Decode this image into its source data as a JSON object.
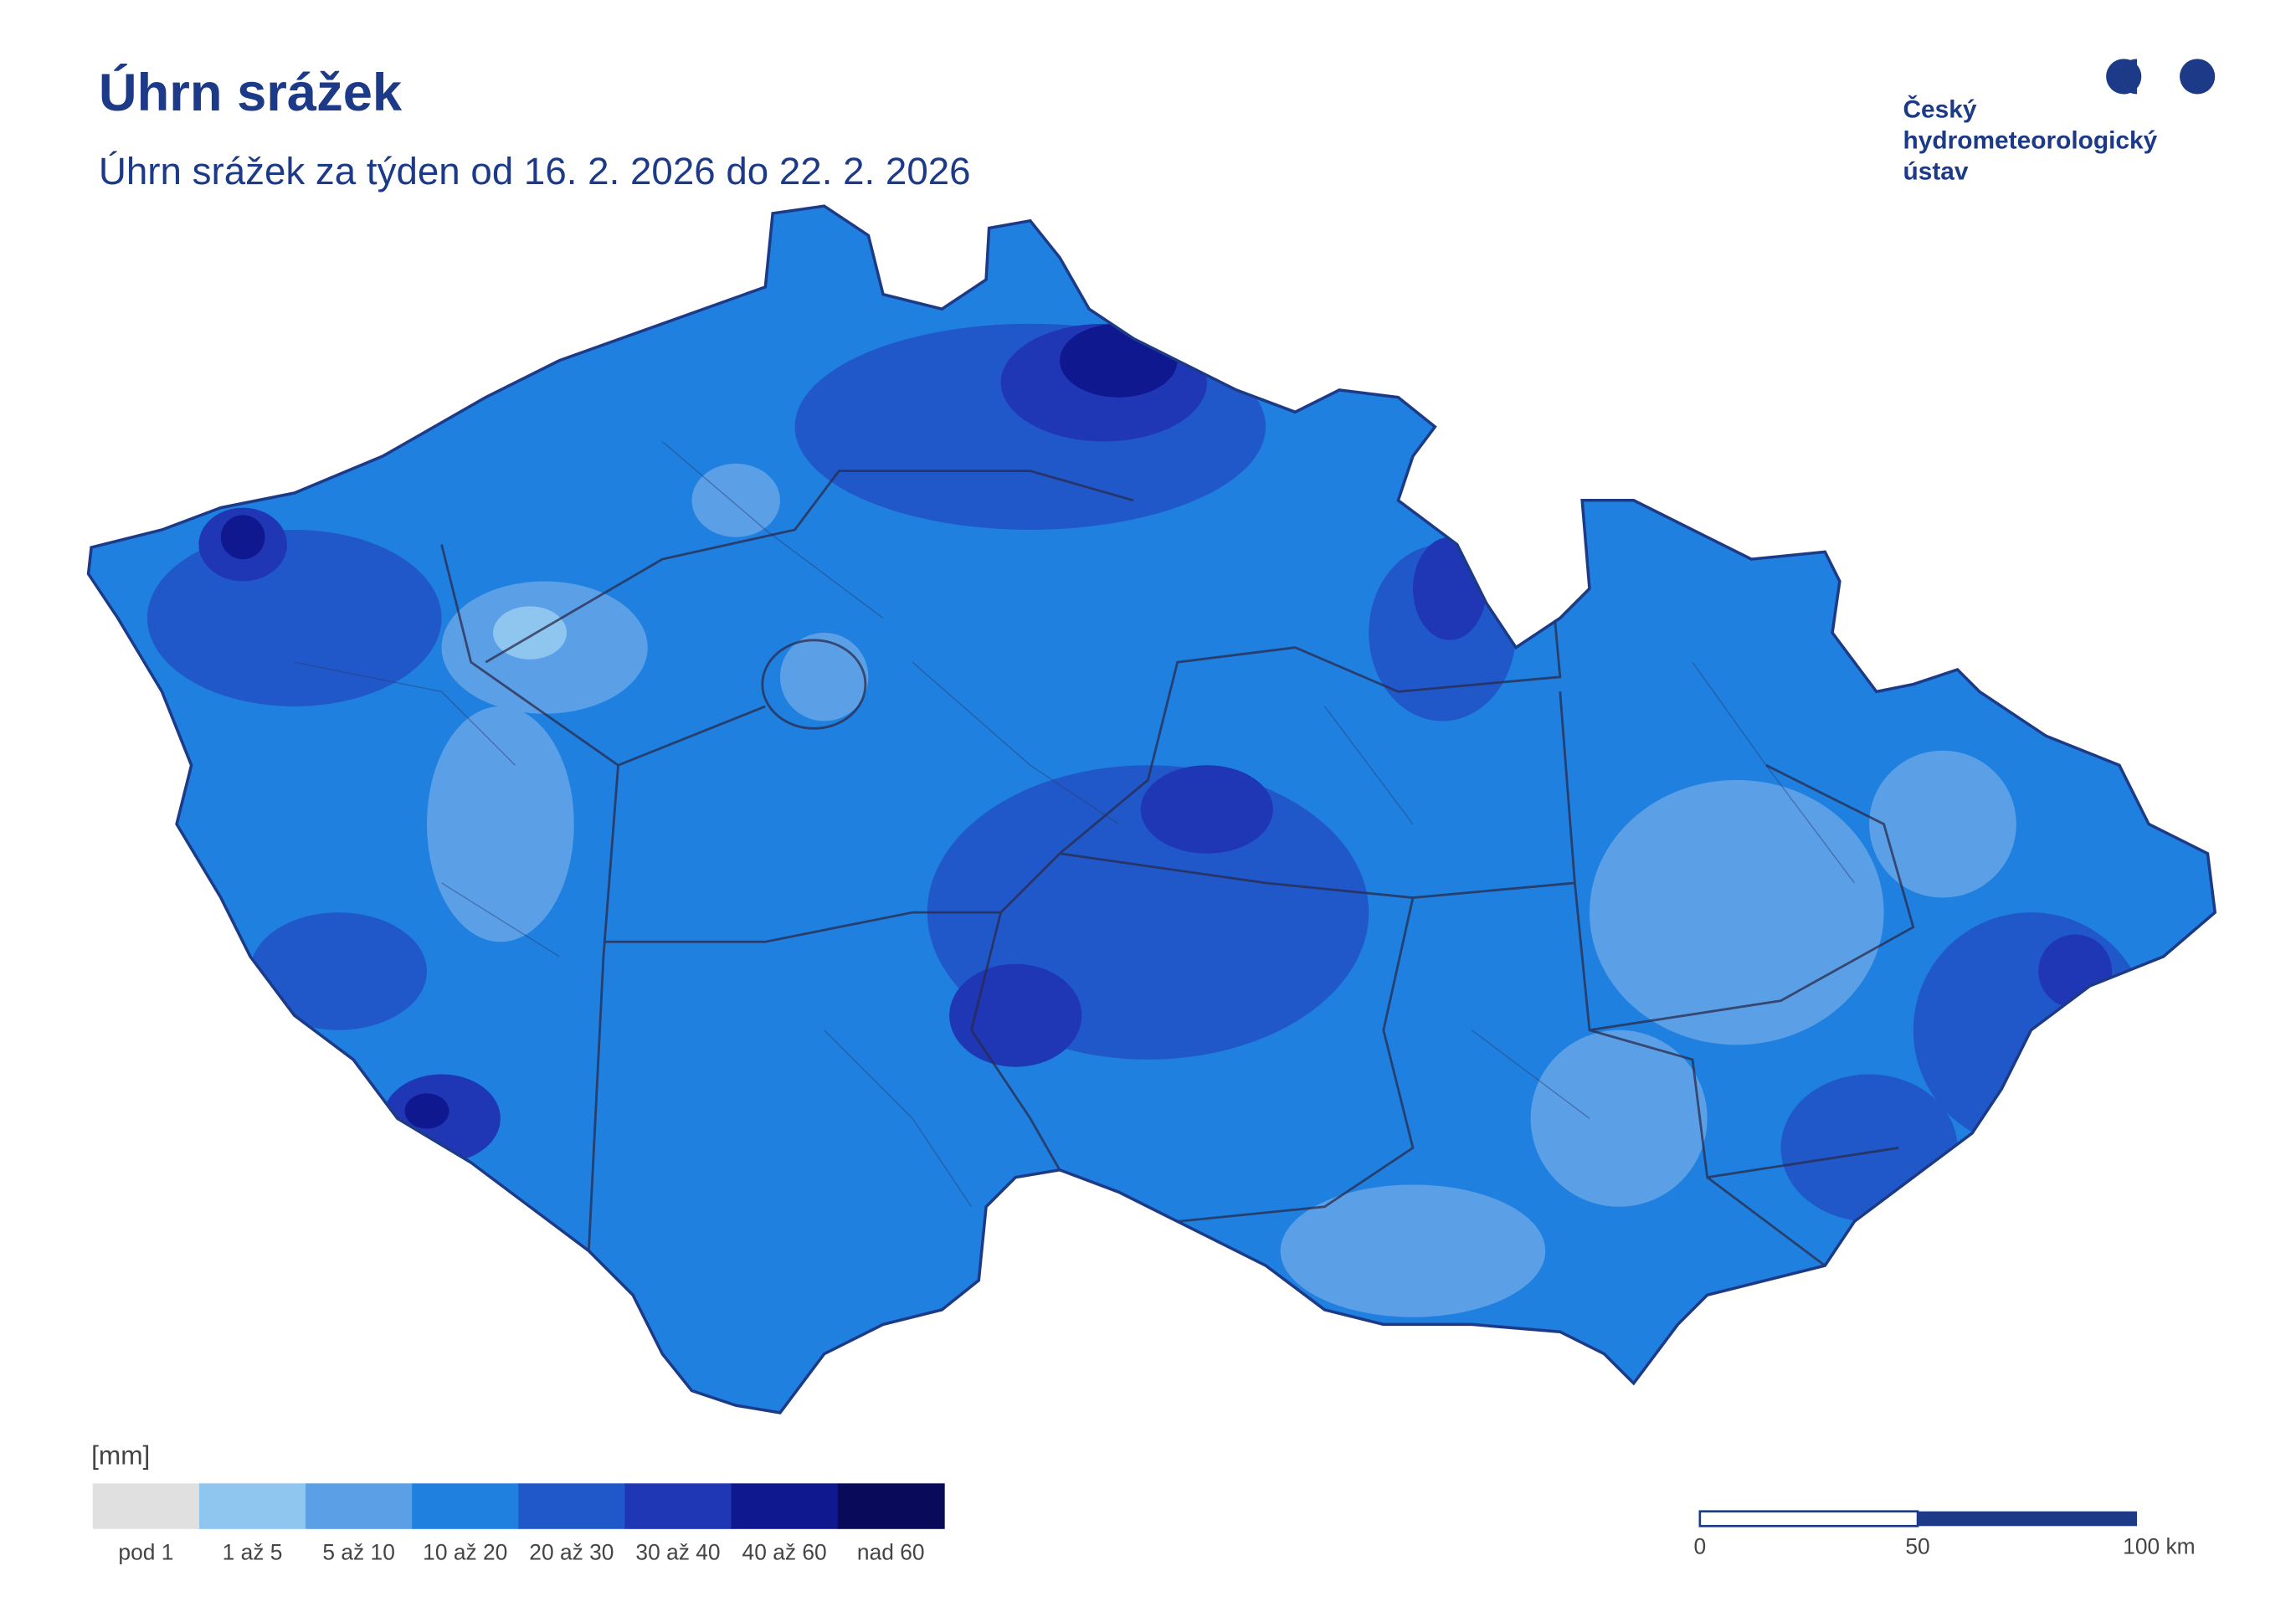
{
  "header": {
    "title": "Úhrn srážek",
    "subtitle": "Úhrn srážek za týden od 16. 2. 2026 do 22. 2. 2026"
  },
  "logo": {
    "lines": [
      "Český",
      "hydrometeorologický",
      "ústav"
    ]
  },
  "legend": {
    "unit": "[mm]",
    "items": [
      {
        "label": "pod 1",
        "color": "#e0e0e0"
      },
      {
        "label": "1 až 5",
        "color": "#8fc6ef"
      },
      {
        "label": "5 až 10",
        "color": "#5b9fe6"
      },
      {
        "label": "10 až 20",
        "color": "#1f80e0"
      },
      {
        "label": "20 až 30",
        "color": "#2158c9"
      },
      {
        "label": "30 až 40",
        "color": "#1f36b5"
      },
      {
        "label": "40 až 60",
        "color": "#10188f"
      },
      {
        "label": "nad 60",
        "color": "#0a0a5a"
      }
    ]
  },
  "scalebar": {
    "labels": [
      "0",
      "50",
      "100 km"
    ]
  }
}
